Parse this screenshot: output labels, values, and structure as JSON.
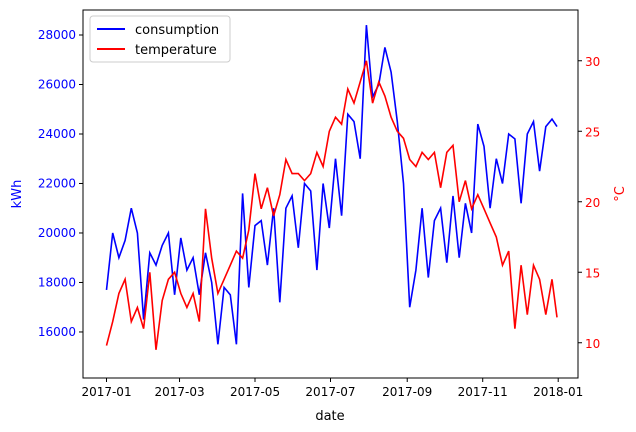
{
  "chart_data": {
    "type": "line",
    "xlabel": "date",
    "ylabel": "kWh",
    "y2label": "°C",
    "x_ticks": [
      "2017-01",
      "2017-03",
      "2017-05",
      "2017-07",
      "2017-09",
      "2017-11",
      "2018-01"
    ],
    "y_ticks": [
      "16000",
      "18000",
      "20000",
      "22000",
      "24000",
      "26000",
      "28000"
    ],
    "y2_ticks": [
      "10",
      "15",
      "20",
      "25",
      "30"
    ],
    "xlim": [
      "2016-12-13",
      "2018-01-17"
    ],
    "ylim": [
      14140,
      29010
    ],
    "y2lim": [
      7.5,
      33.6
    ],
    "legend": "top-left",
    "grid": false,
    "colors": {
      "consumption": "#0000ff",
      "temperature": "#ff0000"
    },
    "x": [
      "2017-01-01",
      "2017-01-06",
      "2017-01-11",
      "2017-01-16",
      "2017-01-21",
      "2017-01-26",
      "2017-01-31",
      "2017-02-05",
      "2017-02-10",
      "2017-02-15",
      "2017-02-20",
      "2017-02-25",
      "2017-03-02",
      "2017-03-07",
      "2017-03-12",
      "2017-03-17",
      "2017-03-22",
      "2017-03-27",
      "2017-04-01",
      "2017-04-06",
      "2017-04-11",
      "2017-04-16",
      "2017-04-21",
      "2017-04-26",
      "2017-05-01",
      "2017-05-06",
      "2017-05-11",
      "2017-05-16",
      "2017-05-21",
      "2017-05-26",
      "2017-05-31",
      "2017-06-05",
      "2017-06-10",
      "2017-06-15",
      "2017-06-20",
      "2017-06-25",
      "2017-06-30",
      "2017-07-05",
      "2017-07-10",
      "2017-07-15",
      "2017-07-20",
      "2017-07-25",
      "2017-07-30",
      "2017-08-04",
      "2017-08-09",
      "2017-08-14",
      "2017-08-19",
      "2017-08-24",
      "2017-08-29",
      "2017-09-03",
      "2017-09-08",
      "2017-09-13",
      "2017-09-18",
      "2017-09-23",
      "2017-09-28",
      "2017-10-03",
      "2017-10-08",
      "2017-10-13",
      "2017-10-18",
      "2017-10-23",
      "2017-10-28",
      "2017-11-02",
      "2017-11-07",
      "2017-11-12",
      "2017-11-17",
      "2017-11-22",
      "2017-11-27",
      "2017-12-02",
      "2017-12-07",
      "2017-12-12",
      "2017-12-17",
      "2017-12-22",
      "2017-12-27",
      "2017-12-31"
    ],
    "series": [
      {
        "name": "consumption",
        "axis": "left",
        "values": [
          17700,
          20000,
          19000,
          19700,
          21000,
          20000,
          16500,
          19200,
          18700,
          19500,
          20000,
          17500,
          19800,
          18500,
          19000,
          17500,
          19200,
          18000,
          15500,
          17800,
          17500,
          15500,
          21600,
          17800,
          20300,
          20500,
          18700,
          21000,
          17200,
          21000,
          21500,
          19400,
          22000,
          21700,
          18500,
          22000,
          20200,
          23000,
          20700,
          24800,
          24500,
          23000,
          28400,
          25500,
          26000,
          27500,
          26500,
          24500,
          22000,
          17000,
          18500,
          21000,
          18200,
          20500,
          21000,
          18800,
          21500,
          19000,
          21200,
          20000,
          24400,
          23500,
          21000,
          23000,
          22000,
          24000,
          23800,
          21200,
          24000,
          24500,
          22500,
          24300,
          24600,
          24300
        ]
      },
      {
        "name": "temperature",
        "axis": "right",
        "values": [
          9.8,
          11.5,
          13.5,
          14.5,
          11.5,
          12.5,
          11,
          15,
          9.5,
          13,
          14.5,
          15,
          13.5,
          12.5,
          13.5,
          11.5,
          19.5,
          16,
          13.5,
          14.5,
          15.5,
          16.5,
          16,
          18,
          22,
          19.5,
          21,
          19,
          20.5,
          23,
          22,
          22,
          21.5,
          22,
          23.5,
          22.5,
          25,
          26,
          25.5,
          28,
          27,
          28.5,
          30,
          27,
          28.5,
          27.5,
          26,
          25,
          24.5,
          23,
          22.5,
          23.5,
          23,
          23.5,
          21,
          23.5,
          24,
          20,
          21.5,
          19.5,
          20.5,
          19.5,
          18.5,
          17.5,
          15.5,
          16.5,
          11,
          15.5,
          12,
          15.5,
          14.5,
          12,
          14.5,
          11.8
        ]
      }
    ]
  }
}
